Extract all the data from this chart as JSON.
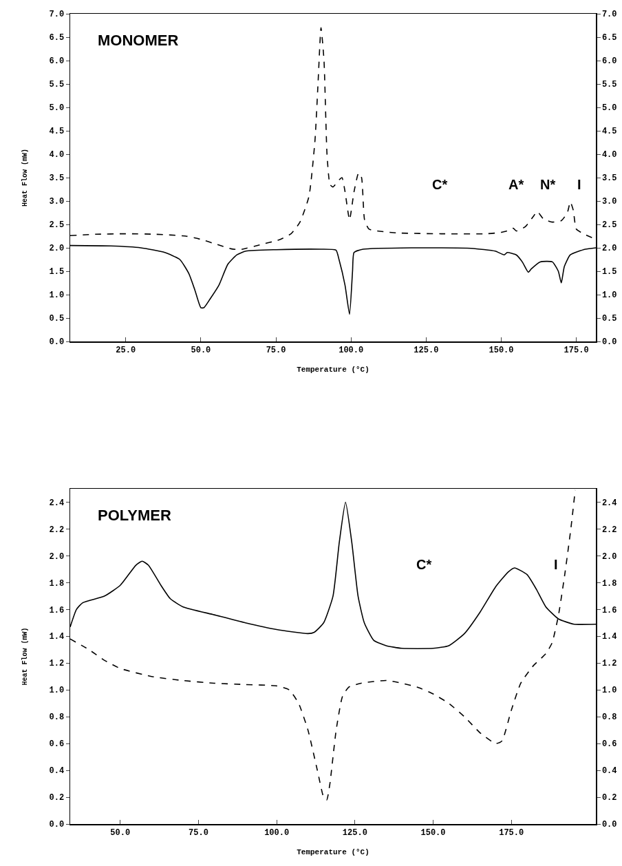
{
  "chart_data": [
    {
      "type": "line",
      "title": "MONOMER",
      "xlabel": "Temperature (°C)",
      "ylabel": "Heat Flow (mW)",
      "xlim": [
        6.5,
        181.5
      ],
      "ylim": [
        0,
        7.0
      ],
      "xticks": [
        {
          "value": 25,
          "label": "25.0"
        },
        {
          "value": 50,
          "label": "50.0"
        },
        {
          "value": 75,
          "label": "75.0"
        },
        {
          "value": 100,
          "label": "100.0"
        },
        {
          "value": 125,
          "label": "125.0"
        },
        {
          "value": 150,
          "label": "150.0"
        },
        {
          "value": 175,
          "label": "175.0"
        }
      ],
      "yticks": [
        {
          "value": 0,
          "label": "0.0"
        },
        {
          "value": 0.5,
          "label": "0.5"
        },
        {
          "value": 1,
          "label": "1.0"
        },
        {
          "value": 1.5,
          "label": "1.5"
        },
        {
          "value": 2,
          "label": "2.0"
        },
        {
          "value": 2.5,
          "label": "2.5"
        },
        {
          "value": 3,
          "label": "3.0"
        },
        {
          "value": 3.5,
          "label": "3.5"
        },
        {
          "value": 4,
          "label": "4.0"
        },
        {
          "value": 4.5,
          "label": "4.5"
        },
        {
          "value": 5,
          "label": "5.0"
        },
        {
          "value": 5.5,
          "label": "5.5"
        },
        {
          "value": 6,
          "label": "6.0"
        },
        {
          "value": 6.5,
          "label": "6.5"
        },
        {
          "value": 7,
          "label": "7.0"
        }
      ],
      "y2lim": [
        0,
        7.0
      ],
      "y2ticks": [
        {
          "value": 0,
          "label": "0.0"
        },
        {
          "value": 0.5,
          "label": "0.5"
        },
        {
          "value": 1,
          "label": "1.0"
        },
        {
          "value": 1.5,
          "label": "1.5"
        },
        {
          "value": 2,
          "label": "2.0"
        },
        {
          "value": 2.5,
          "label": "2.5"
        },
        {
          "value": 3,
          "label": "3.0"
        },
        {
          "value": 3.5,
          "label": "3.5"
        },
        {
          "value": 4,
          "label": "4.0"
        },
        {
          "value": 4.5,
          "label": "4.5"
        },
        {
          "value": 5,
          "label": "5.0"
        },
        {
          "value": 5.5,
          "label": "5.5"
        },
        {
          "value": 6,
          "label": "6.0"
        },
        {
          "value": 6.5,
          "label": "6.5"
        },
        {
          "value": 7,
          "label": "7.0"
        }
      ],
      "annotations": [
        "C*",
        "A*",
        "N*",
        "I"
      ],
      "series": [
        {
          "color": "#000000",
          "line_style": "dashed",
          "x": [
            6.5,
            15,
            25,
            35,
            45,
            50,
            55,
            60,
            63,
            70,
            76,
            80,
            83,
            86,
            88,
            89,
            90,
            91,
            92,
            93,
            94,
            96,
            97,
            98,
            99.5,
            101,
            102.5,
            103.5,
            104.5,
            106,
            115,
            130,
            145,
            150,
            153,
            154,
            155,
            158,
            161,
            162,
            164,
            167,
            170,
            172,
            173,
            174,
            175,
            178,
            181.5
          ],
          "values": [
            2.26,
            2.29,
            2.3,
            2.29,
            2.25,
            2.18,
            2.08,
            1.98,
            1.96,
            2.07,
            2.17,
            2.3,
            2.55,
            3.1,
            4.3,
            5.5,
            6.7,
            6.0,
            4.0,
            3.35,
            3.3,
            3.45,
            3.5,
            3.2,
            2.6,
            3.2,
            3.6,
            3.5,
            2.6,
            2.4,
            2.32,
            2.3,
            2.3,
            2.33,
            2.38,
            2.42,
            2.36,
            2.45,
            2.7,
            2.78,
            2.62,
            2.55,
            2.58,
            2.75,
            2.98,
            2.8,
            2.4,
            2.28,
            2.18
          ]
        },
        {
          "color": "#000000",
          "line_style": "solid",
          "x": [
            6.5,
            20,
            30,
            38,
            43,
            46,
            48,
            50,
            51,
            53,
            56,
            59,
            62,
            65,
            75,
            90,
            95,
            96,
            98,
            99.5,
            100.5,
            101,
            104,
            120,
            140,
            148,
            151,
            152,
            155,
            157,
            159,
            160,
            163,
            167,
            169,
            170,
            171,
            173,
            178,
            181.5
          ],
          "values": [
            2.05,
            2.04,
            2.0,
            1.9,
            1.75,
            1.45,
            1.1,
            0.72,
            0.72,
            0.9,
            1.2,
            1.65,
            1.85,
            1.93,
            1.96,
            1.97,
            1.95,
            1.75,
            1.2,
            0.58,
            1.5,
            1.9,
            1.97,
            2.0,
            1.99,
            1.93,
            1.85,
            1.9,
            1.85,
            1.7,
            1.48,
            1.55,
            1.7,
            1.7,
            1.5,
            1.25,
            1.6,
            1.85,
            1.97,
            2.0
          ]
        }
      ]
    },
    {
      "type": "line",
      "title": "POLYMER",
      "xlabel": "Temperature (°C)",
      "ylabel": "Heat Flow (mW)",
      "xlim": [
        34,
        202
      ],
      "ylim": [
        0,
        2.5
      ],
      "xticks": [
        {
          "value": 50,
          "label": "50.0"
        },
        {
          "value": 75,
          "label": "75.0"
        },
        {
          "value": 100,
          "label": "100.0"
        },
        {
          "value": 125,
          "label": "125.0"
        },
        {
          "value": 150,
          "label": "150.0"
        },
        {
          "value": 175,
          "label": "175.0"
        }
      ],
      "yticks": [
        {
          "value": 0,
          "label": "0.0"
        },
        {
          "value": 0.2,
          "label": "0.2"
        },
        {
          "value": 0.4,
          "label": "0.4"
        },
        {
          "value": 0.6,
          "label": "0.6"
        },
        {
          "value": 0.8,
          "label": "0.8"
        },
        {
          "value": 1,
          "label": "1.0"
        },
        {
          "value": 1.2,
          "label": "1.2"
        },
        {
          "value": 1.4,
          "label": "1.4"
        },
        {
          "value": 1.6,
          "label": "1.6"
        },
        {
          "value": 1.8,
          "label": "1.8"
        },
        {
          "value": 2,
          "label": "2.0"
        },
        {
          "value": 2.2,
          "label": "2.2"
        },
        {
          "value": 2.4,
          "label": "2.4"
        }
      ],
      "y2lim": [
        0,
        2.5
      ],
      "y2ticks": [
        {
          "value": 0,
          "label": "0.0"
        },
        {
          "value": 0.2,
          "label": "0.2"
        },
        {
          "value": 0.4,
          "label": "0.4"
        },
        {
          "value": 0.6,
          "label": "0.6"
        },
        {
          "value": 0.8,
          "label": "0.8"
        },
        {
          "value": 1,
          "label": "1.0"
        },
        {
          "value": 1.2,
          "label": "1.2"
        },
        {
          "value": 1.4,
          "label": "1.4"
        },
        {
          "value": 1.6,
          "label": "1.6"
        },
        {
          "value": 1.8,
          "label": "1.8"
        },
        {
          "value": 2,
          "label": "2.0"
        },
        {
          "value": 2.2,
          "label": "2.2"
        },
        {
          "value": 2.4,
          "label": "2.4"
        }
      ],
      "annotations": [
        "C*",
        "I"
      ],
      "series": [
        {
          "color": "#000000",
          "line_style": "solid",
          "x": [
            34,
            36,
            38,
            45,
            50,
            55,
            57,
            59,
            63,
            66,
            70,
            80,
            90,
            100,
            110,
            112,
            115,
            118,
            120,
            122,
            124,
            126,
            128,
            131,
            135,
            140,
            150,
            155,
            160,
            165,
            170,
            174,
            176,
            180,
            183,
            186,
            190,
            195,
            202
          ],
          "values": [
            1.47,
            1.6,
            1.65,
            1.7,
            1.78,
            1.93,
            1.96,
            1.93,
            1.78,
            1.68,
            1.62,
            1.56,
            1.5,
            1.45,
            1.42,
            1.43,
            1.5,
            1.7,
            2.1,
            2.4,
            2.1,
            1.7,
            1.5,
            1.37,
            1.33,
            1.31,
            1.31,
            1.33,
            1.42,
            1.58,
            1.77,
            1.88,
            1.91,
            1.86,
            1.75,
            1.62,
            1.53,
            1.49,
            1.49
          ]
        },
        {
          "color": "#000000",
          "line_style": "dashed",
          "x": [
            34,
            40,
            45,
            50,
            60,
            70,
            80,
            90,
            100,
            104,
            107,
            110,
            113,
            115,
            116,
            117,
            119,
            121,
            123,
            127,
            135,
            140,
            145,
            150,
            155,
            160,
            165,
            170,
            172,
            175,
            178,
            182,
            186,
            188,
            190,
            192,
            194,
            195.4
          ],
          "values": [
            1.38,
            1.3,
            1.22,
            1.16,
            1.1,
            1.07,
            1.05,
            1.04,
            1.03,
            1.0,
            0.9,
            0.7,
            0.4,
            0.2,
            0.18,
            0.3,
            0.7,
            0.95,
            1.02,
            1.05,
            1.07,
            1.05,
            1.02,
            0.97,
            0.9,
            0.8,
            0.68,
            0.6,
            0.62,
            0.85,
            1.05,
            1.18,
            1.27,
            1.35,
            1.55,
            1.85,
            2.2,
            2.49
          ]
        }
      ]
    }
  ]
}
